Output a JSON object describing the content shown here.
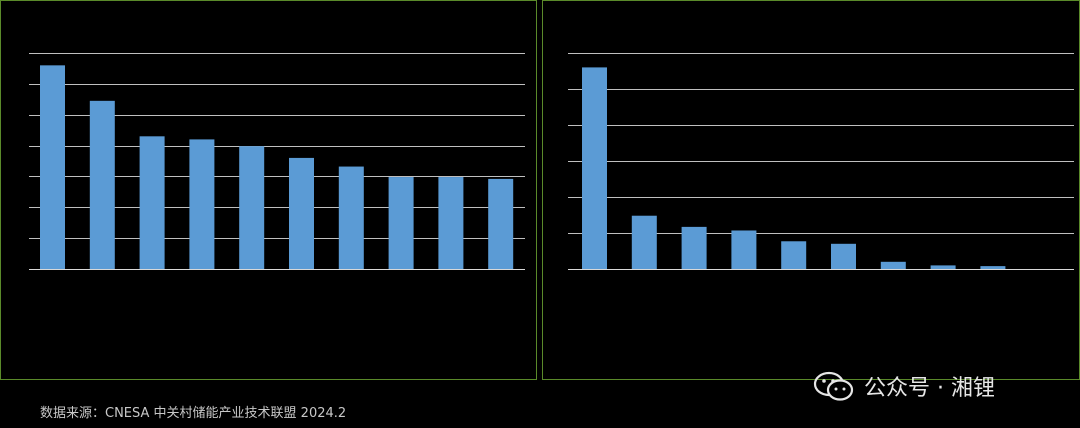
{
  "chart_data": [
    {
      "type": "bar",
      "color": "#5b9bd5",
      "grid": true,
      "ylim": [
        0,
        7
      ],
      "yticks": 7,
      "categories": [
        "",
        "",
        "",
        "",
        "",
        "",
        "",
        "",
        "",
        ""
      ],
      "values": [
        6.6,
        5.45,
        4.3,
        4.2,
        3.98,
        3.6,
        3.32,
        2.98,
        2.98,
        2.92
      ]
    },
    {
      "type": "bar",
      "color": "#5b9bd5",
      "grid": true,
      "ylim": [
        0,
        6
      ],
      "yticks": 6,
      "categories": [
        "",
        "",
        "",
        "",
        "",
        "",
        "",
        "",
        ""
      ],
      "values": [
        5.6,
        1.48,
        1.17,
        1.07,
        0.77,
        0.7,
        0.2,
        0.1,
        0.08
      ]
    }
  ],
  "footer": {
    "source": "数据来源：CNESA 中关村储能产业技术联盟 2024.2",
    "watermark": "公众号 · 湘锂"
  },
  "icons": {
    "watermark_icon": "wechat-icon"
  }
}
